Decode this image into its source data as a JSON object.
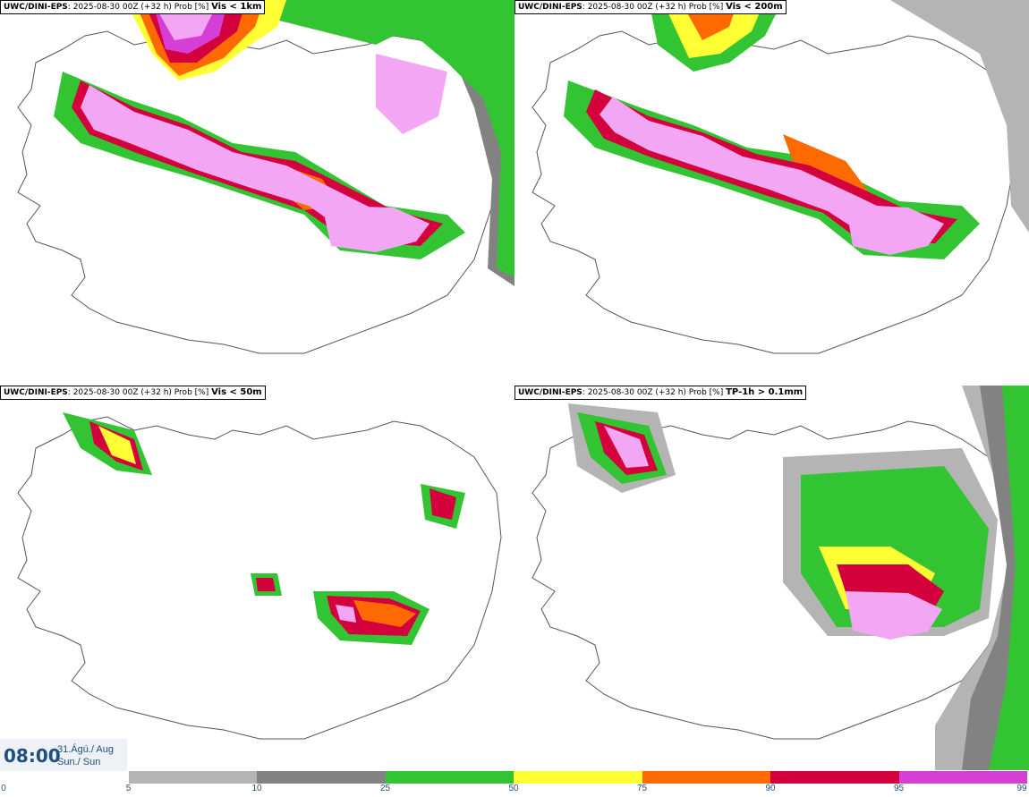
{
  "panels": [
    {
      "model": "UWC/DINI-EPS",
      "run": "2025-08-30 00Z (+32 h) Prob [%]",
      "param": "Vis < 1km"
    },
    {
      "model": "UWC/DINI-EPS",
      "run": "2025-08-30 00Z (+32 h) Prob [%]",
      "param": "Vis < 200m"
    },
    {
      "model": "UWC/DINI-EPS",
      "run": "2025-08-30 00Z (+32 h) Prob [%]",
      "param": "Vis < 50m"
    },
    {
      "model": "UWC/DINI-EPS",
      "run": "2025-08-30 00Z (+32 h) Prob [%]",
      "param": "TP-1h > 0.1mm"
    }
  ],
  "valid_time": {
    "time": "08:00",
    "date_line1": "31.Ágú./ Aug",
    "date_line2": "Sun./ Sun"
  },
  "colorbar": {
    "ticks": [
      "0",
      "5",
      "10",
      "25",
      "50",
      "75",
      "90",
      "95",
      "99"
    ],
    "colors": [
      "#ffffff",
      "#b4b4b4",
      "#828282",
      "#33c433",
      "#ffff33",
      "#ff6a00",
      "#d4003d",
      "#d63fd6",
      "#f3a6f3"
    ]
  }
}
